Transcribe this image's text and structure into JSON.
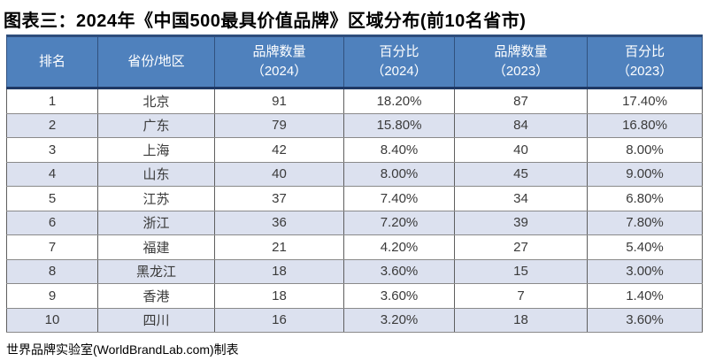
{
  "title": "图表三：2024年《中国500最具价值品牌》区域分布(前10名省市)",
  "footer": "世界品牌实验室(WorldBrandLab.com)制表",
  "colors": {
    "header_bg": "#4f81bd",
    "header_text": "#ffffff",
    "header_border_dark": "#1f3864",
    "stripe_row_bg": "#dce1ef",
    "grid_line": "#8a8a8a",
    "body_text": "#3a3a3a"
  },
  "chart_data": {
    "type": "table",
    "title": "图表三：2024年《中国500最具价值品牌》区域分布(前10名省市)",
    "columns": [
      "排名",
      "省份/地区",
      "品牌数量（2024）",
      "百分比（2024）",
      "品牌数量（2023）",
      "百分比（2023）"
    ],
    "header_display": [
      {
        "l1": "排名",
        "l2": ""
      },
      {
        "l1": "省份/地区",
        "l2": ""
      },
      {
        "l1": "品牌数量",
        "l2": "（2024）"
      },
      {
        "l1": "百分比",
        "l2": "（2024）"
      },
      {
        "l1": "品牌数量",
        "l2": "（2023）"
      },
      {
        "l1": "百分比",
        "l2": "（2023）"
      }
    ],
    "rows": [
      [
        "1",
        "北京",
        "91",
        "18.20%",
        "87",
        "17.40%"
      ],
      [
        "2",
        "广东",
        "79",
        "15.80%",
        "84",
        "16.80%"
      ],
      [
        "3",
        "上海",
        "42",
        "8.40%",
        "40",
        "8.00%"
      ],
      [
        "4",
        "山东",
        "40",
        "8.00%",
        "45",
        "9.00%"
      ],
      [
        "5",
        "江苏",
        "37",
        "7.40%",
        "34",
        "6.80%"
      ],
      [
        "6",
        "浙江",
        "36",
        "7.20%",
        "39",
        "7.80%"
      ],
      [
        "7",
        "福建",
        "21",
        "4.20%",
        "27",
        "5.40%"
      ],
      [
        "8",
        "黑龙江",
        "18",
        "3.60%",
        "15",
        "3.00%"
      ],
      [
        "9",
        "香港",
        "18",
        "3.60%",
        "7",
        "1.40%"
      ],
      [
        "10",
        "四川",
        "16",
        "3.20%",
        "18",
        "3.60%"
      ]
    ],
    "source": "世界品牌实验室(WorldBrandLab.com)制表"
  }
}
